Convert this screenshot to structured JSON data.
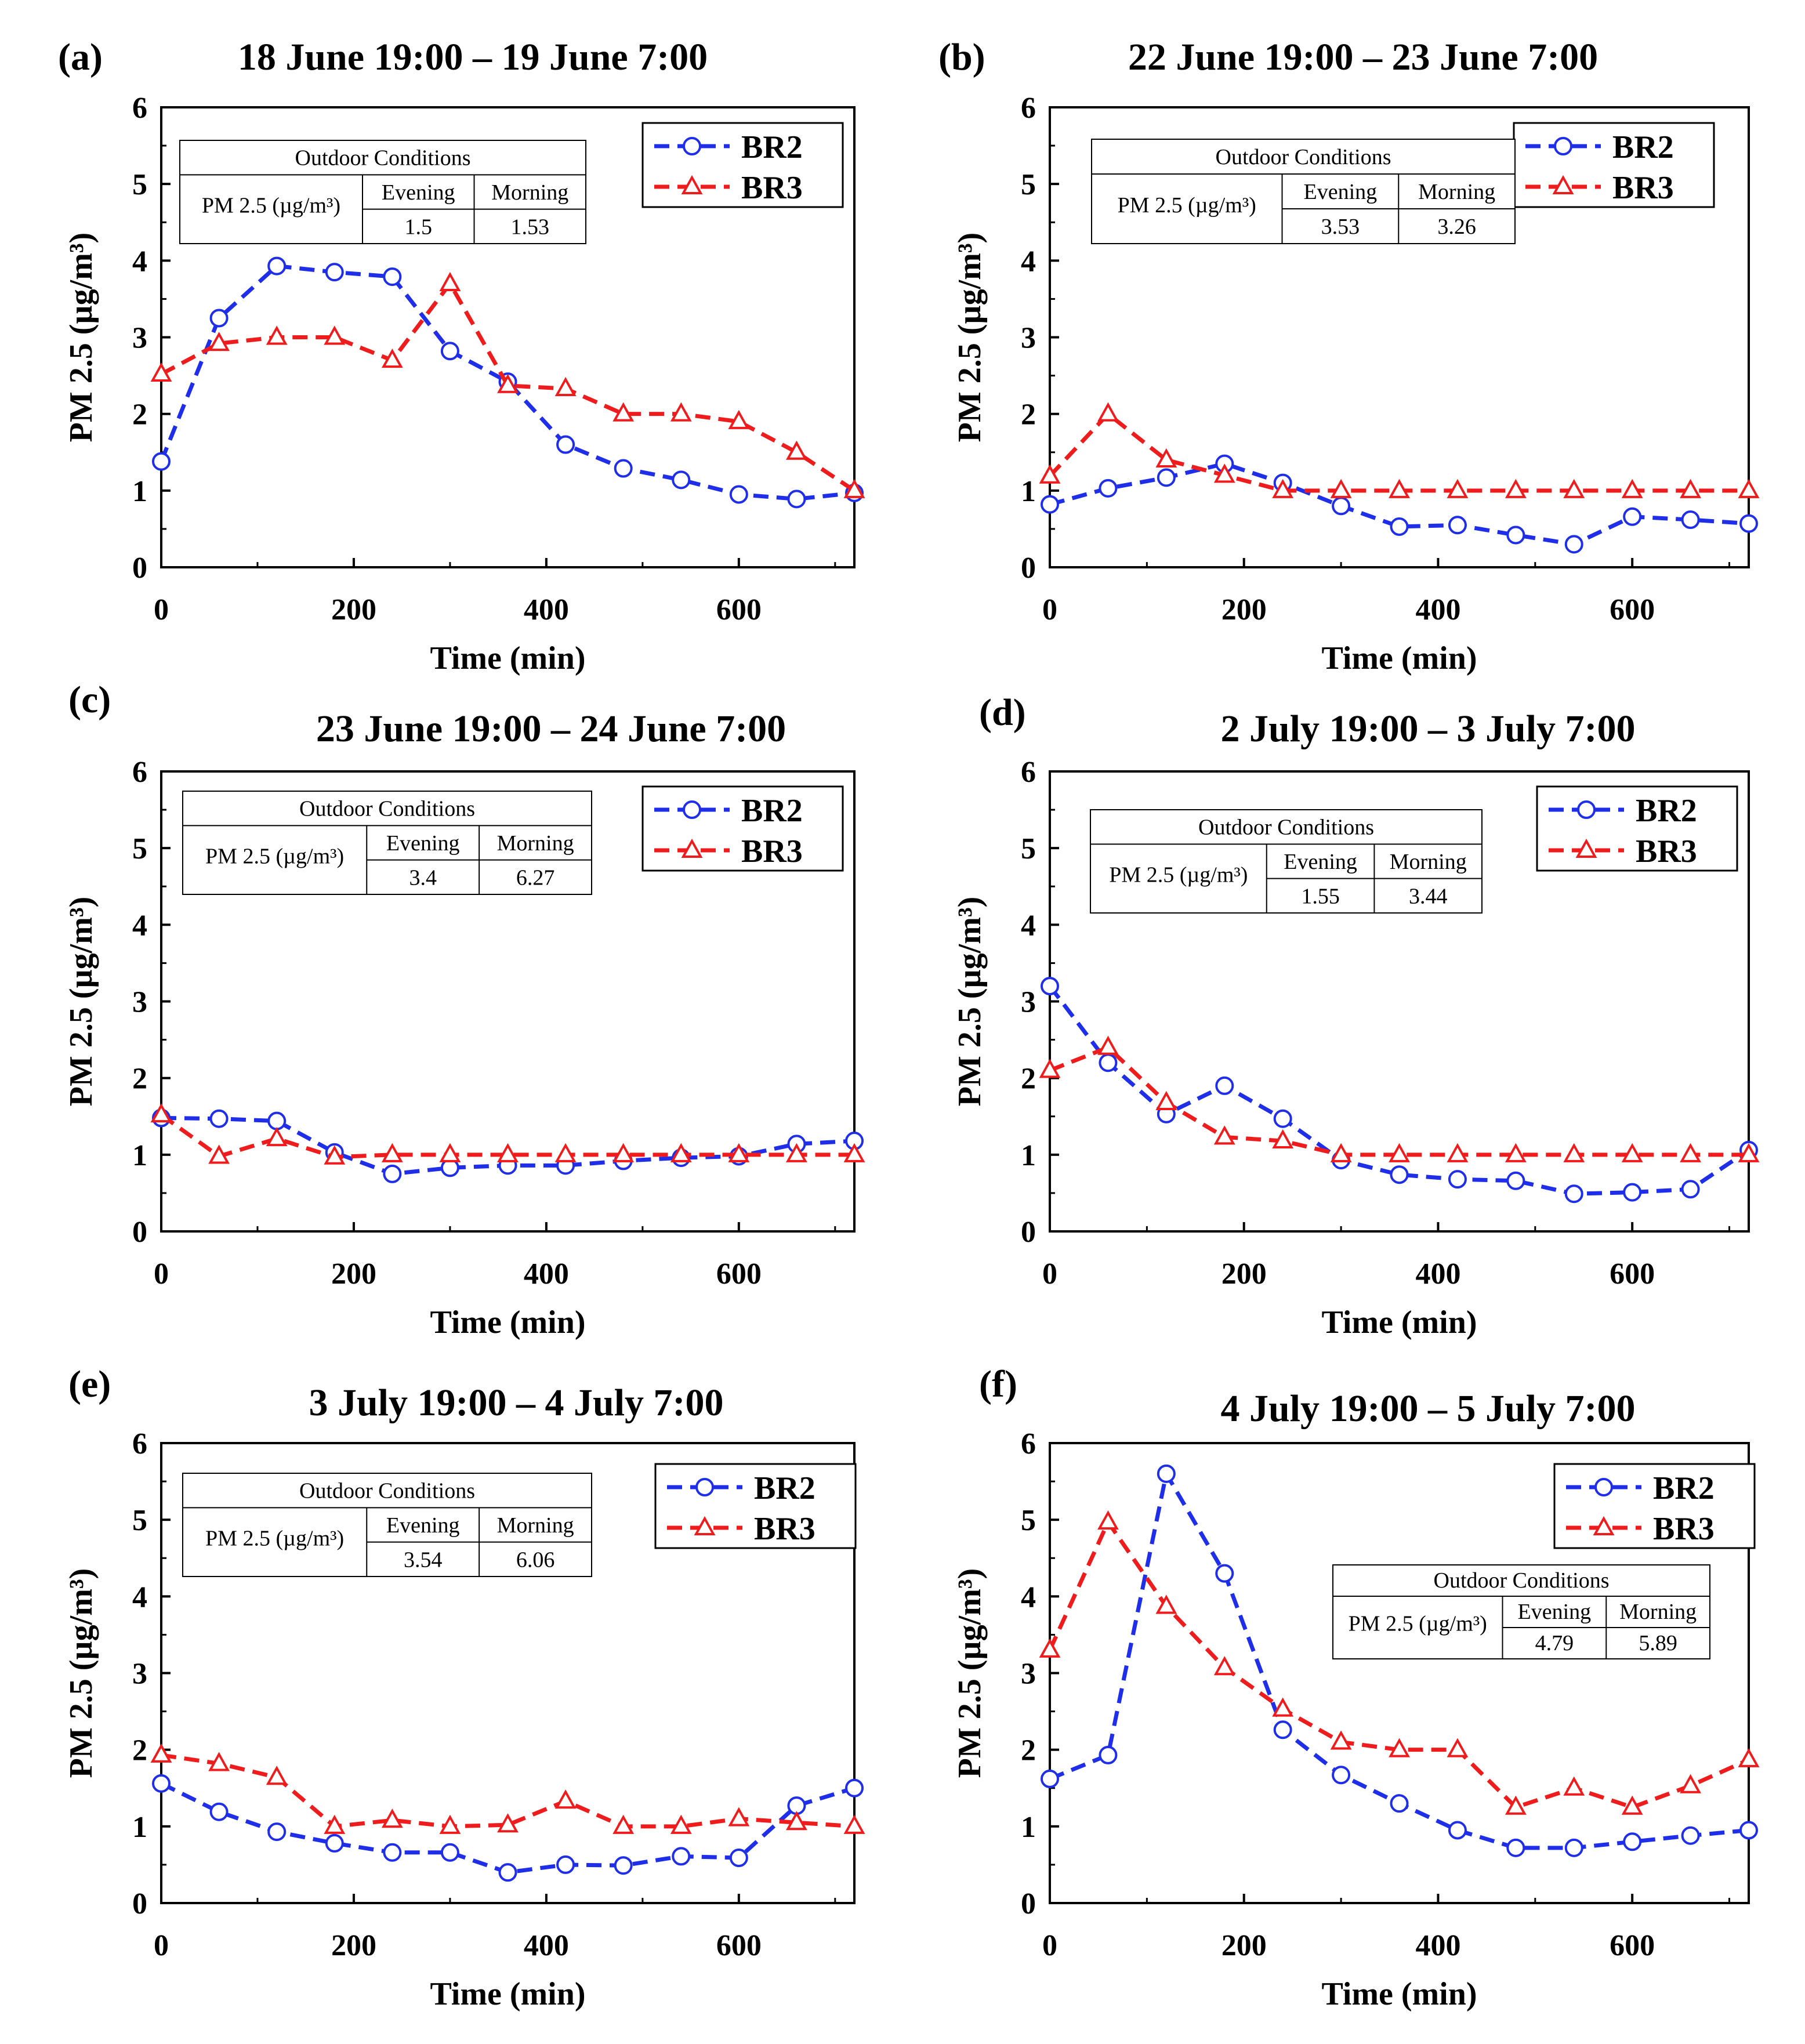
{
  "colors": {
    "br2": "#1f2ee8",
    "br3": "#ee1c1c",
    "axis": "#000000"
  },
  "chart_data": [
    {
      "type": "line",
      "panel_label": "(a)",
      "title": "18 June 19:00 – 19 June 7:00",
      "xlabel": "Time (min)",
      "ylabel": "PM 2.5 (µg/m³)",
      "xlim": [
        0,
        720
      ],
      "ylim": [
        0,
        6
      ],
      "xticks": [
        "0",
        "200",
        "400",
        "600"
      ],
      "yticks": [
        "0",
        "1",
        "2",
        "3",
        "4",
        "5",
        "6"
      ],
      "x": [
        0,
        60,
        120,
        180,
        240,
        300,
        360,
        420,
        480,
        540,
        600,
        660,
        720
      ],
      "series": [
        {
          "name": "BR2",
          "marker": "circle",
          "values": [
            1.38,
            3.25,
            3.93,
            3.85,
            3.79,
            2.82,
            2.42,
            1.6,
            1.29,
            1.14,
            0.95,
            0.89,
            0.97
          ]
        },
        {
          "name": "BR3",
          "marker": "triangle",
          "values": [
            2.52,
            2.92,
            3.0,
            3.0,
            2.7,
            3.7,
            2.37,
            2.33,
            2.0,
            2.0,
            1.9,
            1.5,
            1.0
          ]
        }
      ],
      "legend_position": "top-right",
      "table_position": "top-left",
      "outdoor": {
        "header": "Outdoor Conditions",
        "row_label": "PM 2.5 (µg/m³)",
        "cols": [
          "Evening",
          "Morning"
        ],
        "values": [
          "1.5",
          "1.53"
        ]
      }
    },
    {
      "type": "line",
      "panel_label": "(b)",
      "title": "22 June 19:00 – 23 June 7:00",
      "xlabel": "Time (min)",
      "ylabel": "PM 2.5 (µg/m³)",
      "xlim": [
        0,
        720
      ],
      "ylim": [
        0,
        6
      ],
      "xticks": [
        "0",
        "200",
        "400",
        "600"
      ],
      "yticks": [
        "0",
        "1",
        "2",
        "3",
        "4",
        "5",
        "6"
      ],
      "x": [
        0,
        60,
        120,
        180,
        240,
        300,
        360,
        420,
        480,
        540,
        600,
        660,
        720
      ],
      "series": [
        {
          "name": "BR2",
          "marker": "circle",
          "values": [
            0.82,
            1.03,
            1.17,
            1.35,
            1.1,
            0.8,
            0.53,
            0.55,
            0.42,
            0.3,
            0.66,
            0.62,
            0.57
          ]
        },
        {
          "name": "BR3",
          "marker": "triangle",
          "values": [
            1.19,
            2.0,
            1.4,
            1.2,
            1.0,
            1.0,
            1.0,
            1.0,
            1.0,
            1.0,
            1.0,
            1.0,
            1.0
          ]
        }
      ],
      "legend_position": "top-right",
      "table_position": "top-center",
      "outdoor": {
        "header": "Outdoor Conditions",
        "row_label": "PM 2.5 (µg/m³)",
        "cols": [
          "Evening",
          "Morning"
        ],
        "values": [
          "3.53",
          "3.26"
        ]
      }
    },
    {
      "type": "line",
      "panel_label": "(c)",
      "title": "23 June 19:00 – 24 June 7:00",
      "xlabel": "Time (min)",
      "ylabel": "PM 2.5 (µg/m³)",
      "xlim": [
        0,
        720
      ],
      "ylim": [
        0,
        6
      ],
      "xticks": [
        "0",
        "200",
        "400",
        "600"
      ],
      "yticks": [
        "0",
        "1",
        "2",
        "3",
        "4",
        "5",
        "6"
      ],
      "x": [
        0,
        60,
        120,
        180,
        240,
        300,
        360,
        420,
        480,
        540,
        600,
        660,
        720
      ],
      "series": [
        {
          "name": "BR2",
          "marker": "circle",
          "values": [
            1.48,
            1.47,
            1.44,
            1.03,
            0.75,
            0.83,
            0.86,
            0.86,
            0.92,
            0.96,
            0.98,
            1.14,
            1.18
          ]
        },
        {
          "name": "BR3",
          "marker": "triangle",
          "values": [
            1.52,
            0.98,
            1.21,
            0.97,
            1.0,
            1.0,
            1.0,
            1.0,
            1.0,
            1.0,
            1.0,
            1.0,
            1.0
          ]
        }
      ],
      "legend_position": "top-right",
      "table_position": "top-left",
      "outdoor": {
        "header": "Outdoor Conditions",
        "row_label": "PM 2.5 (µg/m³)",
        "cols": [
          "Evening",
          "Morning"
        ],
        "values": [
          "3.4",
          "6.27"
        ]
      }
    },
    {
      "type": "line",
      "panel_label": "(d)",
      "title": "2 July 19:00 – 3 July 7:00",
      "xlabel": "Time (min)",
      "ylabel": "PM 2.5 (µg/m³)",
      "xlim": [
        0,
        720
      ],
      "ylim": [
        0,
        6
      ],
      "xticks": [
        "0",
        "200",
        "400",
        "600"
      ],
      "yticks": [
        "0",
        "1",
        "2",
        "3",
        "4",
        "5",
        "6"
      ],
      "x": [
        0,
        60,
        120,
        180,
        240,
        300,
        360,
        420,
        480,
        540,
        600,
        660,
        720
      ],
      "series": [
        {
          "name": "BR2",
          "marker": "circle",
          "values": [
            3.2,
            2.2,
            1.53,
            1.9,
            1.47,
            0.93,
            0.74,
            0.68,
            0.66,
            0.49,
            0.51,
            0.55,
            1.06
          ]
        },
        {
          "name": "BR3",
          "marker": "triangle",
          "values": [
            2.1,
            2.4,
            1.68,
            1.23,
            1.18,
            1.0,
            1.0,
            1.0,
            1.0,
            1.0,
            1.0,
            1.0,
            1.0
          ]
        }
      ],
      "legend_position": "top-right",
      "table_position": "top-center",
      "outdoor": {
        "header": "Outdoor Conditions",
        "row_label": "PM 2.5 (µg/m³)",
        "cols": [
          "Evening",
          "Morning"
        ],
        "values": [
          "1.55",
          "3.44"
        ]
      }
    },
    {
      "type": "line",
      "panel_label": "(e)",
      "title": "3 July 19:00 – 4 July 7:00",
      "xlabel": "Time (min)",
      "ylabel": "PM 2.5 (µg/m³)",
      "xlim": [
        0,
        720
      ],
      "ylim": [
        0,
        6
      ],
      "xticks": [
        "0",
        "200",
        "400",
        "600"
      ],
      "yticks": [
        "0",
        "1",
        "2",
        "3",
        "4",
        "5",
        "6"
      ],
      "x": [
        0,
        60,
        120,
        180,
        240,
        300,
        360,
        420,
        480,
        540,
        600,
        660,
        720
      ],
      "series": [
        {
          "name": "BR2",
          "marker": "circle",
          "values": [
            1.56,
            1.19,
            0.93,
            0.78,
            0.66,
            0.66,
            0.4,
            0.5,
            0.49,
            0.61,
            0.59,
            1.27,
            1.5
          ]
        },
        {
          "name": "BR3",
          "marker": "triangle",
          "values": [
            1.93,
            1.82,
            1.64,
            1.0,
            1.08,
            1.0,
            1.02,
            1.33,
            1.0,
            1.0,
            1.1,
            1.05,
            1.0
          ]
        }
      ],
      "legend_position": "top-right",
      "table_position": "top-left",
      "outdoor": {
        "header": "Outdoor Conditions",
        "row_label": "PM 2.5 (µg/m³)",
        "cols": [
          "Evening",
          "Morning"
        ],
        "values": [
          "3.54",
          "6.06"
        ]
      }
    },
    {
      "type": "line",
      "panel_label": "(f)",
      "title": "4 July 19:00 – 5 July 7:00",
      "xlabel": "Time (min)",
      "ylabel": "PM 2.5 (µg/m³)",
      "xlim": [
        0,
        720
      ],
      "ylim": [
        0,
        6
      ],
      "xticks": [
        "0",
        "200",
        "400",
        "600"
      ],
      "yticks": [
        "0",
        "1",
        "2",
        "3",
        "4",
        "5",
        "6"
      ],
      "x": [
        0,
        60,
        120,
        180,
        240,
        300,
        360,
        420,
        480,
        540,
        600,
        660,
        720
      ],
      "series": [
        {
          "name": "BR2",
          "marker": "circle",
          "values": [
            1.62,
            1.93,
            5.6,
            4.3,
            2.26,
            1.67,
            1.3,
            0.95,
            0.72,
            0.72,
            0.8,
            0.88,
            0.95
          ]
        },
        {
          "name": "BR3",
          "marker": "triangle",
          "values": [
            3.3,
            4.97,
            3.87,
            3.07,
            2.53,
            2.1,
            2.0,
            2.0,
            1.25,
            1.5,
            1.25,
            1.53,
            1.87
          ]
        }
      ],
      "legend_position": "top-right",
      "table_position": "middle-right",
      "outdoor": {
        "header": "Outdoor Conditions",
        "row_label": "PM 2.5 (µg/m³)",
        "cols": [
          "Evening",
          "Morning"
        ],
        "values": [
          "4.79",
          "5.89"
        ]
      }
    }
  ]
}
